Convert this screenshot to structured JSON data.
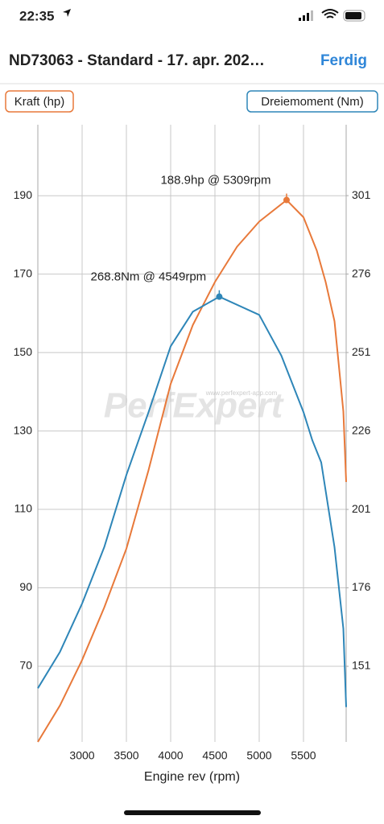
{
  "status_bar": {
    "time": "22:35"
  },
  "nav": {
    "title": "ND73063 - Standard - 17. apr. 202…",
    "done": "Ferdig"
  },
  "watermark": {
    "logo": "PerfExpert",
    "url": "www.perfexpert-app.com"
  },
  "chart_data": {
    "type": "line",
    "ylabel": "Kraft (hp)",
    "y2label": "Dreiemoment (Nm)",
    "xlabel": "Engine rev (rpm)",
    "xlim": [
      2500,
      5982
    ],
    "xticks": [
      3000,
      3500,
      4000,
      4500,
      5000,
      5500
    ],
    "ylim": [
      50.7,
      208.1
    ],
    "yticks": [
      70,
      90,
      110,
      130,
      150,
      170,
      190
    ],
    "y2lim": [
      126.9,
      323.6
    ],
    "y2ticks": [
      151,
      176,
      201,
      226,
      251,
      276,
      301
    ],
    "grid": true,
    "series": [
      {
        "name": "Kraft (hp)",
        "color": "#e8793a",
        "axis": "y",
        "x": [
          2500,
          2750,
          3000,
          3250,
          3500,
          3750,
          4000,
          4250,
          4500,
          4750,
          5000,
          5309,
          5500,
          5650,
          5750,
          5850,
          5950,
          5982
        ],
        "values": [
          50.7,
          60,
          71.6,
          85,
          100,
          120,
          142,
          157,
          168,
          177,
          183.4,
          188.9,
          184.5,
          176,
          168,
          158,
          135,
          117
        ],
        "peak_index": 11,
        "peak_label": "188.9hp @ 5309rpm"
      },
      {
        "name": "Dreiemoment (Nm)",
        "color": "#2e86b8",
        "axis": "y2",
        "x": [
          2500,
          2750,
          3000,
          3250,
          3500,
          3750,
          4000,
          4250,
          4549,
          5000,
          5250,
          5500,
          5600,
          5700,
          5850,
          5950,
          5982
        ],
        "values": [
          144,
          155.6,
          171,
          189,
          212,
          232,
          253,
          264,
          268.8,
          263,
          250,
          232,
          223,
          216,
          189,
          163,
          138
        ],
        "peak_index": 8,
        "peak_label": "268.8Nm @ 4549rpm"
      }
    ]
  }
}
